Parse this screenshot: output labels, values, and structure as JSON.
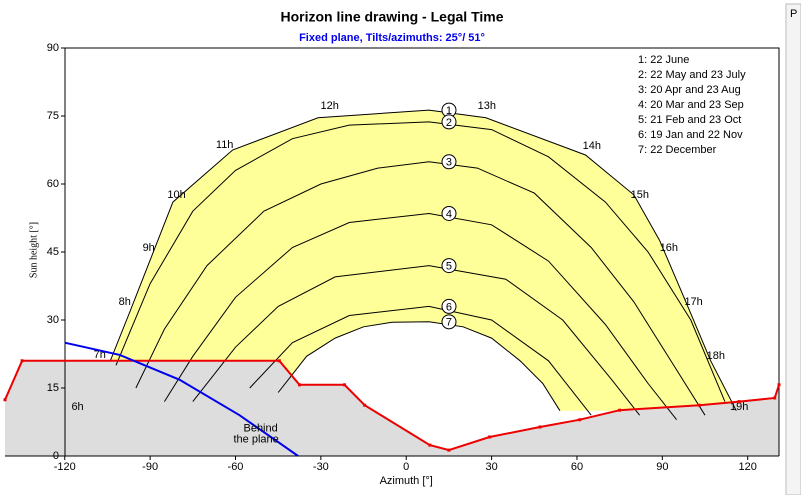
{
  "chart_data": {
    "type": "sunpath",
    "title": "Horizon line drawing - Legal Time",
    "subtitle": "Fixed plane, Tilts/azimuths: 25°/ 51°",
    "x_label": "Azimuth [°]",
    "y_label": "Sun height [°]",
    "xlim": [
      -141,
      131
    ],
    "ylim": [
      0,
      90
    ],
    "xticks": [
      -120,
      -90,
      -60,
      -30,
      0,
      30,
      60,
      90,
      120
    ],
    "yticks": [
      0,
      15,
      30,
      45,
      60,
      75,
      90
    ],
    "fill_color": "#ffff99",
    "ground_color": "#dddddd",
    "series": [
      {
        "name": "1: 22 June",
        "marker": "1",
        "color": "#000000",
        "az": [
          -104,
          -97,
          -82,
          -61,
          -31,
          8,
          28,
          63,
          80,
          89,
          98,
          107,
          116
        ],
        "h": [
          21,
          32,
          56,
          67.5,
          74.6,
          76.3,
          74.6,
          66.4,
          57.6,
          47.6,
          34.4,
          21,
          10
        ]
      },
      {
        "name": "2: 22 May and 23 July",
        "marker": "2",
        "color": "#000000",
        "az": [
          -102,
          -90,
          -75,
          -60,
          -40,
          -20,
          8,
          30,
          50,
          70,
          85,
          100,
          112
        ],
        "h": [
          20,
          38,
          54,
          63,
          70,
          73,
          73.7,
          72,
          66,
          56,
          45,
          30,
          12
        ]
      },
      {
        "name": "3: 20 Apr and 23 Aug",
        "marker": "3",
        "color": "#000000",
        "az": [
          -95,
          -85,
          -70,
          -50,
          -30,
          -10,
          8,
          25,
          45,
          65,
          80,
          95,
          105
        ],
        "h": [
          15,
          28,
          42,
          54,
          60,
          63.5,
          64.9,
          63.5,
          58,
          46,
          34,
          19,
          9
        ]
      },
      {
        "name": "4: 20 Mar and 23 Sep",
        "marker": "4",
        "color": "#000000",
        "az": [
          -85,
          -75,
          -60,
          -40,
          -20,
          8,
          30,
          50,
          70,
          85,
          95
        ],
        "h": [
          12,
          22,
          35,
          46,
          51.5,
          53.5,
          51,
          43,
          29,
          16,
          8
        ]
      },
      {
        "name": "5: 21 Feb and 23 Oct",
        "marker": "5",
        "color": "#000000",
        "az": [
          -75,
          -60,
          -45,
          -25,
          8,
          35,
          55,
          72,
          82
        ],
        "h": [
          12,
          24,
          33,
          39.5,
          42,
          39,
          30,
          17,
          9
        ]
      },
      {
        "name": "6: 19 Jan and 22 Nov",
        "marker": "6",
        "color": "#000000",
        "az": [
          -55,
          -40,
          -20,
          8,
          30,
          50,
          65
        ],
        "h": [
          15,
          25,
          31,
          33,
          30,
          21,
          9
        ]
      },
      {
        "name": "7: 22 December",
        "marker": "7",
        "color": "#000000",
        "az": [
          -45,
          -35,
          -25,
          -15,
          -5,
          8,
          20,
          30,
          40,
          48,
          54
        ],
        "h": [
          14,
          22,
          26,
          28.5,
          29.5,
          29.6,
          28.5,
          26,
          21,
          16,
          10
        ]
      }
    ],
    "horizon": {
      "color": "#ee0000",
      "az": [
        -141,
        -135,
        -44.6,
        -37.5,
        -21.7,
        -14.6,
        8.3,
        15,
        29.3,
        47,
        61,
        75,
        103,
        117,
        129.5,
        131
      ],
      "h": [
        12.4,
        21,
        21,
        15.7,
        15.7,
        11.2,
        2.4,
        1.3,
        4.2,
        6.4,
        8,
        10.1,
        11.2,
        12,
        12.8,
        15.7
      ]
    },
    "plane_limit": {
      "color": "#0000ee",
      "label_lines": [
        "Behind",
        "the plane"
      ],
      "label_az": -60,
      "label_h": 6,
      "az": [
        -120,
        -100.7,
        -79.6,
        -58.6,
        -46,
        -38
      ],
      "h": [
        25,
        22.3,
        16.8,
        9,
        3.5,
        0
      ]
    },
    "hour_labels": [
      {
        "label": "6h",
        "az": -115.5,
        "h": 10.8
      },
      {
        "label": "7h",
        "az": -107.7,
        "h": 22.3
      },
      {
        "label": "8h",
        "az": -98.9,
        "h": 34
      },
      {
        "label": "9h",
        "az": -90.5,
        "h": 45.9
      },
      {
        "label": "10h",
        "az": -80.7,
        "h": 57.6
      },
      {
        "label": "11h",
        "az": -63.8,
        "h": 68.6
      },
      {
        "label": "12h",
        "az": -26.9,
        "h": 77.2
      },
      {
        "label": "13h",
        "az": 28.3,
        "h": 77.2
      },
      {
        "label": "14h",
        "az": 65.2,
        "h": 68.4
      },
      {
        "label": "15h",
        "az": 82.1,
        "h": 57.6
      },
      {
        "label": "16h",
        "az": 92.3,
        "h": 45.9
      },
      {
        "label": "17h",
        "az": 101,
        "h": 34
      },
      {
        "label": "18h",
        "az": 108.8,
        "h": 22
      },
      {
        "label": "19h",
        "az": 117,
        "h": 10.8
      }
    ]
  },
  "side_panel": {
    "text": "P"
  }
}
